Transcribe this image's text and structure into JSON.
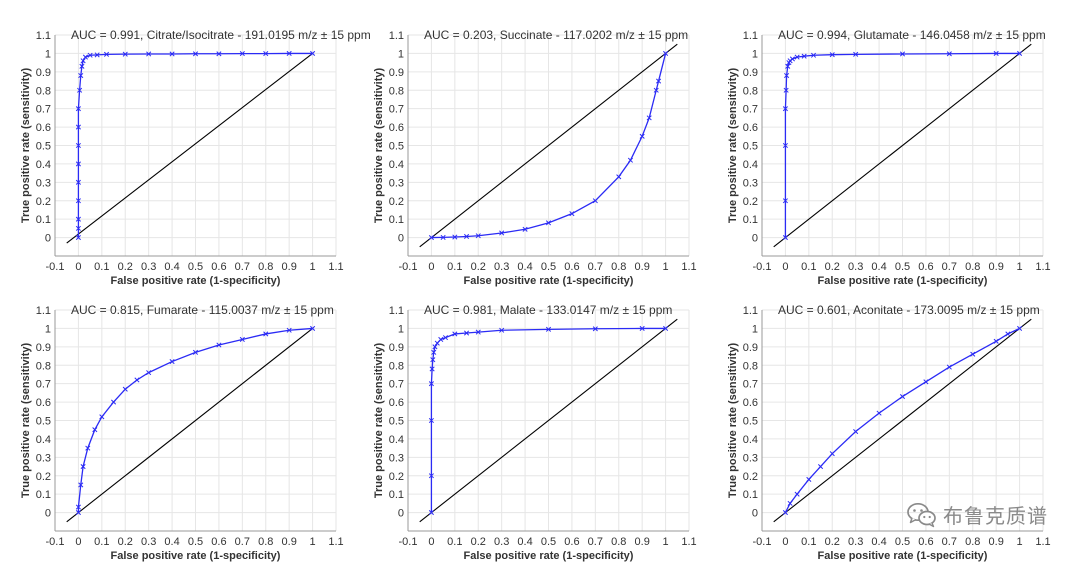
{
  "watermark": {
    "text": "布鲁克质谱",
    "icon": "wechat-logo-icon"
  },
  "colors": {
    "roc": "#2b2bf5",
    "diagonal": "#000000",
    "grid": "#e6e6e6",
    "axis": "#999999",
    "text": "#333333"
  },
  "chart_data": [
    {
      "type": "line",
      "title": "AUC = 0.991, Citrate/Isocitrate - 191.0195 m/z ± 15 ppm",
      "xlabel": "False positive rate (1-specificity)",
      "ylabel": "True positive rate (sensitivity)",
      "xlim": [
        -0.1,
        1.1
      ],
      "ylim": [
        -0.1,
        1.1
      ],
      "xticks": [
        "-0.1",
        "0",
        "0.1",
        "0.2",
        "0.3",
        "0.4",
        "0.5",
        "0.6",
        "0.7",
        "0.8",
        "0.9",
        "1",
        "1.1"
      ],
      "yticks": [
        "0",
        "0.1",
        "0.2",
        "0.3",
        "0.4",
        "0.5",
        "0.6",
        "0.7",
        "0.8",
        "0.9",
        "1",
        "1.1"
      ],
      "grid": true,
      "series": [
        {
          "x": [
            0,
            0,
            0,
            0,
            0,
            0,
            0,
            0,
            0,
            0.005,
            0.01,
            0.015,
            0.02,
            0.03,
            0.05,
            0.08,
            0.12,
            0.2,
            0.3,
            0.4,
            0.5,
            0.6,
            0.7,
            0.8,
            0.9,
            1
          ],
          "y": [
            0,
            0.05,
            0.1,
            0.2,
            0.3,
            0.4,
            0.5,
            0.6,
            0.7,
            0.8,
            0.88,
            0.93,
            0.96,
            0.98,
            0.99,
            0.992,
            0.995,
            0.996,
            0.997,
            0.997,
            0.998,
            0.998,
            0.999,
            0.999,
            1,
            1
          ]
        },
        {
          "x": [
            -0.05,
            1
          ],
          "y": [
            -0.03,
            1
          ]
        }
      ]
    },
    {
      "type": "line",
      "title": "AUC = 0.203, Succinate - 117.0202 m/z ± 15 ppm",
      "xlabel": "False positive rate (1-specificity)",
      "ylabel": "True positive rate (sensitivity)",
      "xlim": [
        -0.1,
        1.1
      ],
      "ylim": [
        -0.1,
        1.1
      ],
      "xticks": [
        "-0.1",
        "0",
        "0.1",
        "0.2",
        "0.3",
        "0.4",
        "0.5",
        "0.6",
        "0.7",
        "0.8",
        "0.9",
        "1",
        "1.1"
      ],
      "yticks": [
        "0",
        "0.1",
        "0.2",
        "0.3",
        "0.4",
        "0.5",
        "0.6",
        "0.7",
        "0.8",
        "0.9",
        "1",
        "1.1"
      ],
      "grid": true,
      "series": [
        {
          "x": [
            0,
            0.05,
            0.1,
            0.15,
            0.2,
            0.3,
            0.4,
            0.5,
            0.6,
            0.7,
            0.8,
            0.85,
            0.9,
            0.93,
            0.96,
            0.97,
            1
          ],
          "y": [
            0,
            0.001,
            0.003,
            0.006,
            0.01,
            0.025,
            0.045,
            0.08,
            0.13,
            0.2,
            0.33,
            0.42,
            0.55,
            0.65,
            0.8,
            0.85,
            1
          ]
        },
        {
          "x": [
            -0.05,
            1.05
          ],
          "y": [
            -0.05,
            1.05
          ]
        }
      ]
    },
    {
      "type": "line",
      "title": "AUC = 0.994, Glutamate - 146.0458 m/z ± 15 ppm",
      "xlabel": "False positive rate (1-specificity)",
      "ylabel": "True positive rate (sensitivity)",
      "xlim": [
        -0.1,
        1.1
      ],
      "ylim": [
        -0.1,
        1.1
      ],
      "xticks": [
        "-0.1",
        "0",
        "0.1",
        "0.2",
        "0.3",
        "0.4",
        "0.5",
        "0.6",
        "0.7",
        "0.8",
        "0.9",
        "1",
        "1.1"
      ],
      "yticks": [
        "0",
        "0.1",
        "0.2",
        "0.3",
        "0.4",
        "0.5",
        "0.6",
        "0.7",
        "0.8",
        "0.9",
        "1",
        "1.1"
      ],
      "grid": true,
      "series": [
        {
          "x": [
            0,
            0,
            0,
            0,
            0.003,
            0.005,
            0.01,
            0.015,
            0.02,
            0.03,
            0.05,
            0.08,
            0.12,
            0.2,
            0.3,
            0.5,
            0.7,
            0.9,
            1
          ],
          "y": [
            0,
            0.2,
            0.5,
            0.7,
            0.8,
            0.88,
            0.93,
            0.95,
            0.96,
            0.97,
            0.98,
            0.985,
            0.99,
            0.993,
            0.995,
            0.997,
            0.998,
            1,
            1
          ]
        },
        {
          "x": [
            -0.05,
            1.05
          ],
          "y": [
            -0.05,
            1.05
          ]
        }
      ]
    },
    {
      "type": "line",
      "title": "AUC = 0.815, Fumarate - 115.0037 m/z ± 15 ppm",
      "xlabel": "False positive rate (1-specificity)",
      "ylabel": "True positive rate (sensitivity)",
      "xlim": [
        -0.1,
        1.1
      ],
      "ylim": [
        -0.1,
        1.1
      ],
      "xticks": [
        "-0.1",
        "0",
        "0.1",
        "0.2",
        "0.3",
        "0.4",
        "0.5",
        "0.6",
        "0.7",
        "0.8",
        "0.9",
        "1",
        "1.1"
      ],
      "yticks": [
        "0",
        "0.1",
        "0.2",
        "0.3",
        "0.4",
        "0.5",
        "0.6",
        "0.7",
        "0.8",
        "0.9",
        "1",
        "1.1"
      ],
      "grid": true,
      "series": [
        {
          "x": [
            0,
            0,
            0.01,
            0.02,
            0.04,
            0.07,
            0.1,
            0.15,
            0.2,
            0.25,
            0.3,
            0.4,
            0.5,
            0.6,
            0.7,
            0.8,
            0.9,
            1
          ],
          "y": [
            0,
            0.03,
            0.15,
            0.25,
            0.35,
            0.45,
            0.52,
            0.6,
            0.67,
            0.72,
            0.76,
            0.82,
            0.87,
            0.91,
            0.94,
            0.97,
            0.99,
            1
          ]
        },
        {
          "x": [
            -0.05,
            1
          ],
          "y": [
            -0.05,
            1
          ]
        }
      ]
    },
    {
      "type": "line",
      "title": "AUC = 0.981, Malate - 133.0147 m/z ± 15 ppm",
      "xlabel": "False positive rate (1-specificity)",
      "ylabel": "True positive rate (sensitivity)",
      "xlim": [
        -0.1,
        1.1
      ],
      "ylim": [
        -0.1,
        1.1
      ],
      "xticks": [
        "-0.1",
        "0",
        "0.1",
        "0.2",
        "0.3",
        "0.4",
        "0.5",
        "0.6",
        "0.7",
        "0.8",
        "0.9",
        "1",
        "1.1"
      ],
      "yticks": [
        "0",
        "0.1",
        "0.2",
        "0.3",
        "0.4",
        "0.5",
        "0.6",
        "0.7",
        "0.8",
        "0.9",
        "1",
        "1.1"
      ],
      "grid": true,
      "series": [
        {
          "x": [
            0,
            0,
            0,
            0,
            0.003,
            0.006,
            0.01,
            0.015,
            0.025,
            0.04,
            0.06,
            0.1,
            0.15,
            0.2,
            0.3,
            0.5,
            0.7,
            0.9,
            1
          ],
          "y": [
            0,
            0.2,
            0.5,
            0.7,
            0.78,
            0.83,
            0.87,
            0.9,
            0.92,
            0.94,
            0.95,
            0.97,
            0.975,
            0.98,
            0.99,
            0.995,
            0.998,
            1,
            1
          ]
        },
        {
          "x": [
            -0.05,
            1.05
          ],
          "y": [
            -0.05,
            1.05
          ]
        }
      ]
    },
    {
      "type": "line",
      "title": "AUC = 0.601, Aconitate - 173.0095 m/z ± 15 ppm",
      "xlabel": "False positive rate (1-specificity)",
      "ylabel": "True positive rate (sensitivity)",
      "xlim": [
        -0.1,
        1.1
      ],
      "ylim": [
        -0.1,
        1.1
      ],
      "xticks": [
        "-0.1",
        "0",
        "0.1",
        "0.2",
        "0.3",
        "0.4",
        "0.5",
        "0.6",
        "0.7",
        "0.8",
        "0.9",
        "1",
        "1.1"
      ],
      "yticks": [
        "0",
        "0.1",
        "0.2",
        "0.3",
        "0.4",
        "0.5",
        "0.6",
        "0.7",
        "0.8",
        "0.9",
        "1",
        "1.1"
      ],
      "grid": true,
      "series": [
        {
          "x": [
            0,
            0.02,
            0.05,
            0.1,
            0.15,
            0.2,
            0.3,
            0.4,
            0.5,
            0.6,
            0.7,
            0.8,
            0.9,
            0.95,
            1
          ],
          "y": [
            0,
            0.05,
            0.1,
            0.18,
            0.25,
            0.32,
            0.44,
            0.54,
            0.63,
            0.71,
            0.79,
            0.86,
            0.93,
            0.97,
            1
          ]
        },
        {
          "x": [
            -0.05,
            1.05
          ],
          "y": [
            -0.05,
            1.05
          ]
        }
      ]
    }
  ]
}
